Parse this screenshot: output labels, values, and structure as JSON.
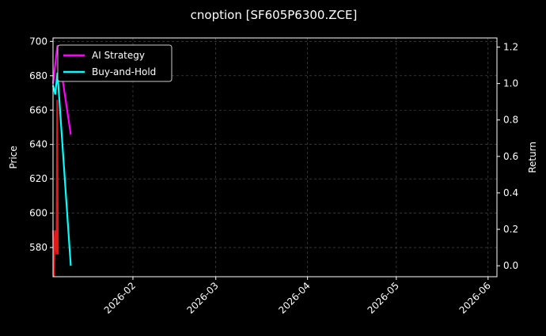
{
  "chart_data": {
    "type": "line",
    "title": "cnoption [SF605P6300.ZCE]",
    "ylabel": "Price",
    "y2label": "Return",
    "xlim": [
      "2026-01-05",
      "2026-06-04"
    ],
    "ylim": [
      563,
      702
    ],
    "y2lim": [
      -0.06,
      1.25
    ],
    "grid": true,
    "legend_position": "top-left",
    "xticks": [
      "2026-02",
      "2026-03",
      "2026-04",
      "2026-05",
      "2026-06"
    ],
    "yticks": [
      580,
      600,
      620,
      640,
      660,
      680,
      700
    ],
    "y2ticks": [
      "0.0",
      "0.2",
      "0.4",
      "0.6",
      "0.8",
      "1.0",
      "1.2"
    ],
    "price_series": {
      "color": "#e41a1a",
      "points": [
        [
          "2026-01-05T00",
          590
        ],
        [
          "2026-01-05T08",
          563
        ],
        [
          "2026-01-05T16",
          590
        ],
        [
          "2026-01-06T04",
          576
        ],
        [
          "2026-01-06T10",
          666
        ],
        [
          "2026-01-06T16",
          576
        ]
      ]
    },
    "series": [
      {
        "name": "AI Strategy",
        "color": "#ff00ff",
        "axis": "right",
        "points": [
          [
            "2026-01-05",
            1.0
          ],
          [
            "2026-01-06T12",
            1.21
          ],
          [
            "2026-01-11",
            0.72
          ]
        ]
      },
      {
        "name": "Buy-and-Hold",
        "color": "#00ffff",
        "axis": "right",
        "points": [
          [
            "2026-01-05",
            0.99
          ],
          [
            "2026-01-05T18",
            0.94
          ],
          [
            "2026-01-06T12",
            1.06
          ],
          [
            "2026-01-11",
            0.0
          ]
        ]
      }
    ]
  }
}
